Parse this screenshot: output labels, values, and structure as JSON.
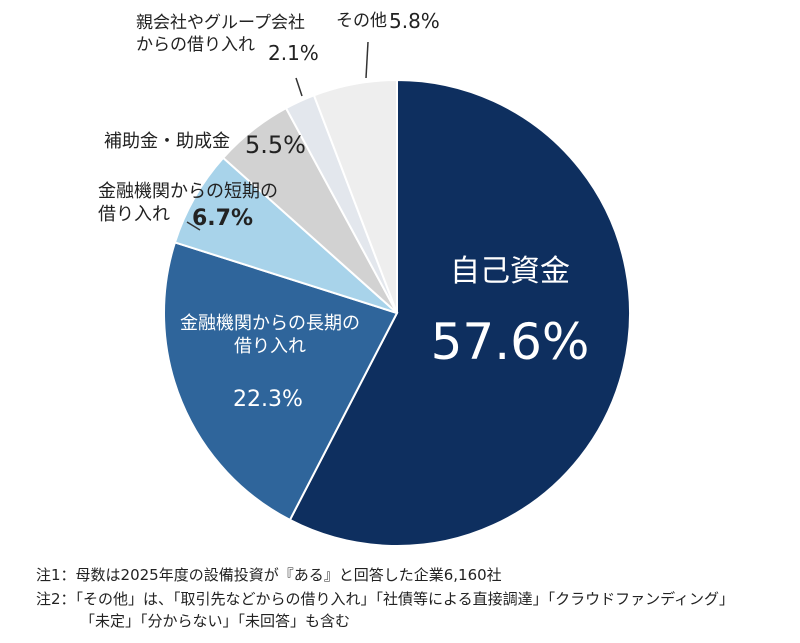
{
  "chart_data": {
    "type": "pie",
    "categories": [
      "自己資金",
      "金融機関からの長期の\n借り入れ",
      "金融機関からの短期の\n借り入れ",
      "補助金・助成金",
      "親会社やグループ会社\nからの借り入れ",
      "その他"
    ],
    "values": [
      57.6,
      22.3,
      6.7,
      5.5,
      2.1,
      5.8
    ],
    "value_labels": [
      "57.6%",
      "22.3%",
      "6.7%",
      "5.5%",
      "2.1%",
      "5.8%"
    ],
    "colors": [
      "#0e2f5f",
      "#2f659b",
      "#a8d3ea",
      "#d2d2d2",
      "#e3e7ed",
      "#eeeeee"
    ],
    "notes": [
      "注1：母数は2025年度の設備投資が『ある』と回答した企業6,160社",
      "注2：「その他」は、「取引先などからの借り入れ」「社債等による直接調達」「クラウドファンディング」\n「未定」「分からない」「未回答」も含む"
    ]
  }
}
